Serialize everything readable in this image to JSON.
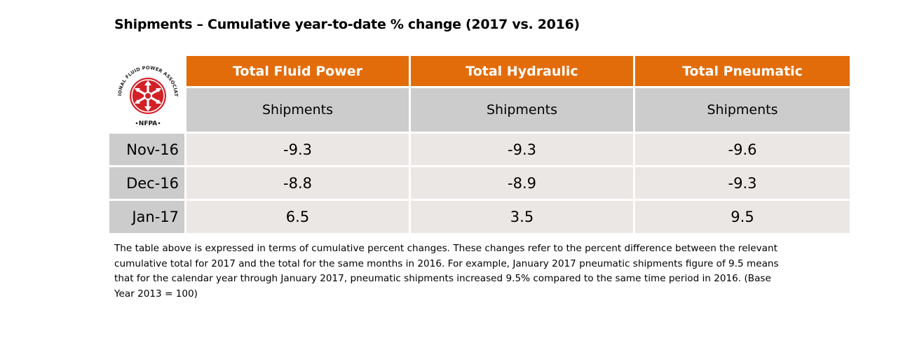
{
  "title": "Shipments – Cumulative year-to-date % change (2017 vs. 2016)",
  "logo": {
    "icon": "nfpa-logo-icon",
    "ring_text": "NATIONAL FLUID POWER ASSOCIATION",
    "abbrev": "NFPA",
    "accent": "#d32027"
  },
  "table": {
    "columns": [
      "Total Fluid Power",
      "Total Hydraulic",
      "Total Pneumatic"
    ],
    "subheaders": [
      "Shipments",
      "Shipments",
      "Shipments"
    ],
    "rows": [
      {
        "label": "Nov-16",
        "values": [
          "-9.3",
          "-9.3",
          "-9.6"
        ]
      },
      {
        "label": "Dec-16",
        "values": [
          "-8.8",
          "-8.9",
          "-9.3"
        ]
      },
      {
        "label": "Jan-17",
        "values": [
          "6.5",
          "3.5",
          "9.5"
        ]
      }
    ]
  },
  "colors": {
    "header_bg": "#e36c0a",
    "subheader_bg": "#cccccc",
    "row_label_bg": "#cccccc",
    "value_bg": "#ebe7e5"
  },
  "note_lines": [
    "The table above is expressed in terms of cumulative percent changes.  These changes refer to the percent difference between the relevant",
    "cumulative total for 2017 and the total for the same months in 2016.  For example, January 2017 pneumatic shipments figure of 9.5 means",
    "that for the calendar year through January 2017, pneumatic shipments increased 9.5% compared to the same time period in 2016.  (Base",
    "Year 2013 = 100)"
  ]
}
